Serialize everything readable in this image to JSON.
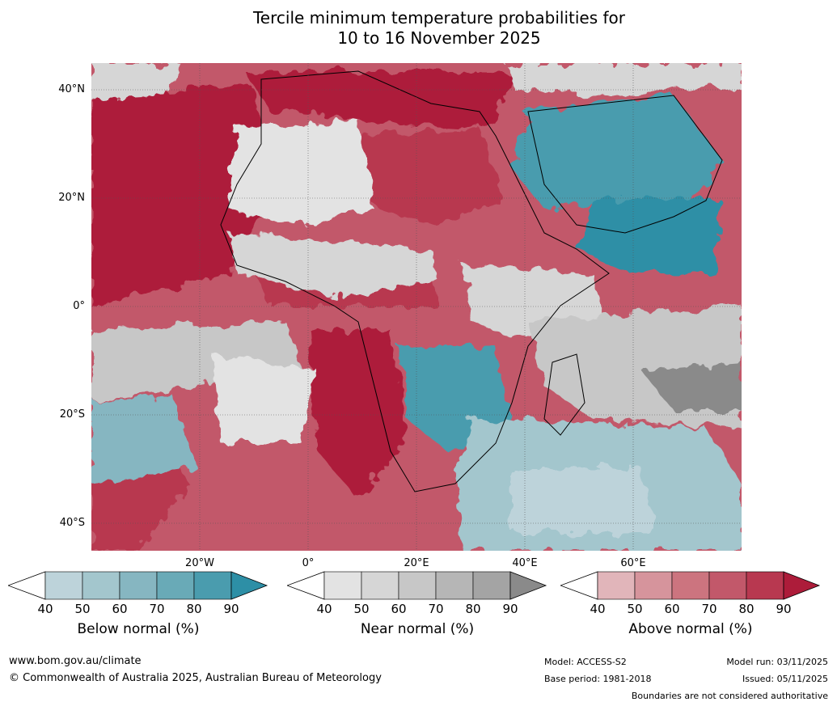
{
  "title": {
    "line1": "Tercile minimum temperature probabilities for",
    "line2": "10 to 16 November 2025"
  },
  "map": {
    "lat_labels": [
      "40°N",
      "20°N",
      "0°",
      "20°S",
      "40°S"
    ],
    "lon_labels": [
      "20°W",
      "0°",
      "20°E",
      "40°E",
      "60°E"
    ]
  },
  "colorbars": [
    {
      "label": "Below normal (%)",
      "ticks": [
        "40",
        "50",
        "60",
        "70",
        "80",
        "90"
      ],
      "colors": [
        "#ffffff",
        "#bdd3da",
        "#a3c6cd",
        "#86b6c1",
        "#69aab7",
        "#4a9cae",
        "#2d8fa6"
      ]
    },
    {
      "label": "Near normal (%)",
      "ticks": [
        "40",
        "50",
        "60",
        "70",
        "80",
        "90"
      ],
      "colors": [
        "#ffffff",
        "#e3e3e3",
        "#d6d6d6",
        "#c7c7c7",
        "#b6b6b6",
        "#a4a4a4",
        "#8a8a8a"
      ]
    },
    {
      "label": "Above normal (%)",
      "ticks": [
        "40",
        "50",
        "60",
        "70",
        "80",
        "90"
      ],
      "colors": [
        "#ffffff",
        "#e1b5ba",
        "#d6949c",
        "#cc747f",
        "#c2586a",
        "#b83850",
        "#ad1c3a"
      ]
    }
  ],
  "footer": {
    "url": "www.bom.gov.au/climate",
    "copyright": "© Commonwealth of Australia 2025, Australian Bureau of Meteorology",
    "model": "Model: ACCESS-S2",
    "base_period": "Base period: 1981-2018",
    "model_run": "Model run: 03/11/2025",
    "issued": "Issued: 05/11/2025",
    "disclaimer": "Boundaries are not considered authoritative"
  }
}
